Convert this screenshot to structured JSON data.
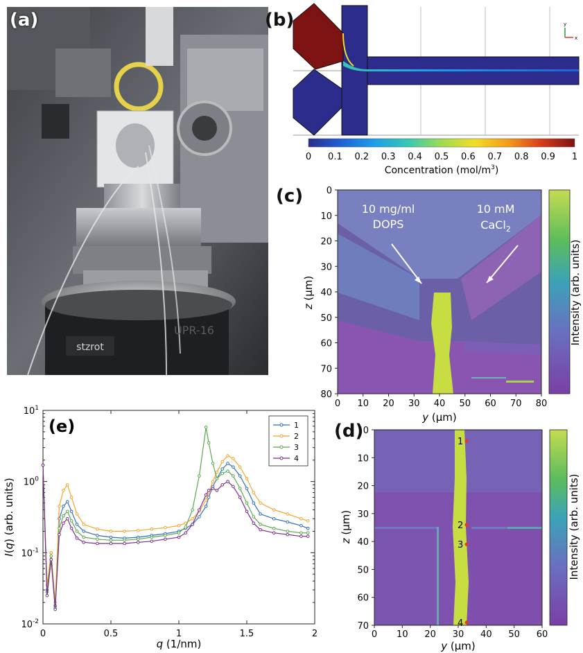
{
  "panels": {
    "a": "(a)",
    "b": "(b)",
    "c": "(c)",
    "d": "(d)",
    "e": "(e)"
  },
  "photo": {
    "labels": [
      "stzrot",
      "UPR-16"
    ]
  },
  "simulation": {
    "axis_glyphs": {
      "y": "y",
      "x": "x"
    },
    "colorbar": {
      "ticks": [
        "0",
        "0.1",
        "0.2",
        "0.3",
        "0.4",
        "0.5",
        "0.6",
        "0.7",
        "0.8",
        "0.9",
        "1"
      ],
      "label_main": "Concentration (mol/m",
      "label_sup": "3",
      "label_end": ")",
      "colors": [
        "#2b2c8c",
        "#1f63d6",
        "#1ea0e8",
        "#36c9b0",
        "#9fdc52",
        "#f3dd26",
        "#f49b1c",
        "#d83b1b",
        "#7c1212"
      ]
    }
  },
  "map_c": {
    "annotation_left": [
      "10 mg/ml",
      "DOPS"
    ],
    "annotation_right_1": "10 mM",
    "annotation_right_2": "CaCl",
    "annotation_right_sub": "2",
    "xlabel": "y",
    "xlabel_unit": " (μm)",
    "ylabel": "z",
    "ylabel_unit": " (μm)",
    "xticks": [
      "0",
      "10",
      "20",
      "30",
      "40",
      "50",
      "60",
      "70",
      "80"
    ],
    "yticks": [
      "0",
      "10",
      "20",
      "30",
      "40",
      "50",
      "60",
      "70",
      "80"
    ],
    "colorbar_label": "Intensity (arb. units)"
  },
  "map_d": {
    "xlabel": "y",
    "xlabel_unit": " (μm)",
    "ylabel": "z",
    "ylabel_unit": " (μm)",
    "xticks": [
      "0",
      "10",
      "20",
      "30",
      "40",
      "50",
      "60"
    ],
    "yticks": [
      "0",
      "10",
      "20",
      "30",
      "40",
      "50",
      "60",
      "70"
    ],
    "colorbar_label": "Intensity (arb. units)",
    "points": [
      {
        "label": "1",
        "y": 33,
        "z": 4
      },
      {
        "label": "2",
        "y": 33,
        "z": 34
      },
      {
        "label": "3",
        "y": 33,
        "z": 41
      },
      {
        "label": "4",
        "y": 33,
        "z": 69
      }
    ]
  },
  "chart_data": {
    "type": "line",
    "xlabel": "q",
    "xlabel_unit": " (1/nm)",
    "ylabel": "I(q) (arb. units)",
    "ylabel_italic": "I",
    "ylabel_paren": "(",
    "ylabel_q": "q",
    "ylabel_rest": ") (arb. units)",
    "x_scale": "linear",
    "y_scale": "log",
    "xlim": [
      0,
      2
    ],
    "ylim": [
      0.01,
      10
    ],
    "xticks": [
      "0",
      "0.5",
      "1",
      "1.5",
      "2"
    ],
    "yticks": [
      {
        "base": "10",
        "exp": "-2",
        "value": 0.01
      },
      {
        "base": "10",
        "exp": "-1",
        "value": 0.1
      },
      {
        "base": "10",
        "exp": "0",
        "value": 1
      },
      {
        "base": "10",
        "exp": "1",
        "value": 10
      }
    ],
    "legend_position": "top-right",
    "x": [
      0.0,
      0.03,
      0.06,
      0.09,
      0.12,
      0.15,
      0.18,
      0.21,
      0.25,
      0.3,
      0.4,
      0.5,
      0.6,
      0.7,
      0.8,
      0.9,
      1.0,
      1.05,
      1.1,
      1.15,
      1.2,
      1.22,
      1.25,
      1.28,
      1.32,
      1.36,
      1.4,
      1.45,
      1.5,
      1.55,
      1.6,
      1.7,
      1.8,
      1.9,
      1.95
    ],
    "series": [
      {
        "name": "1",
        "color": "#2d6fba",
        "values": [
          1.7,
          0.03,
          0.1,
          0.018,
          0.3,
          0.45,
          0.52,
          0.38,
          0.25,
          0.2,
          0.175,
          0.165,
          0.16,
          0.165,
          0.175,
          0.185,
          0.2,
          0.22,
          0.25,
          0.32,
          0.45,
          0.6,
          0.85,
          1.1,
          1.5,
          1.8,
          1.6,
          1.2,
          0.8,
          0.5,
          0.35,
          0.3,
          0.27,
          0.24,
          0.22
        ]
      },
      {
        "name": "2",
        "color": "#f4a52a",
        "values": [
          1.7,
          0.035,
          0.1,
          0.02,
          0.45,
          0.75,
          0.9,
          0.6,
          0.35,
          0.25,
          0.215,
          0.2,
          0.2,
          0.205,
          0.215,
          0.225,
          0.24,
          0.26,
          0.3,
          0.38,
          0.55,
          0.7,
          1.0,
          1.35,
          1.9,
          2.3,
          2.1,
          1.6,
          1.1,
          0.7,
          0.5,
          0.4,
          0.35,
          0.3,
          0.28
        ]
      },
      {
        "name": "3",
        "color": "#5aa84a",
        "values": [
          1.7,
          0.028,
          0.09,
          0.017,
          0.22,
          0.33,
          0.38,
          0.28,
          0.2,
          0.165,
          0.155,
          0.15,
          0.15,
          0.155,
          0.165,
          0.175,
          0.19,
          0.23,
          0.4,
          1.2,
          5.8,
          3.5,
          1.8,
          1.1,
          1.3,
          1.4,
          1.2,
          0.8,
          0.5,
          0.32,
          0.25,
          0.22,
          0.2,
          0.19,
          0.19
        ]
      },
      {
        "name": "4",
        "color": "#7b2d8e",
        "values": [
          1.7,
          0.025,
          0.08,
          0.016,
          0.18,
          0.26,
          0.3,
          0.22,
          0.16,
          0.14,
          0.135,
          0.135,
          0.135,
          0.14,
          0.145,
          0.155,
          0.165,
          0.19,
          0.25,
          0.4,
          0.65,
          0.75,
          0.8,
          0.75,
          0.9,
          1.0,
          0.85,
          0.6,
          0.38,
          0.26,
          0.21,
          0.19,
          0.18,
          0.17,
          0.17
        ]
      }
    ]
  }
}
